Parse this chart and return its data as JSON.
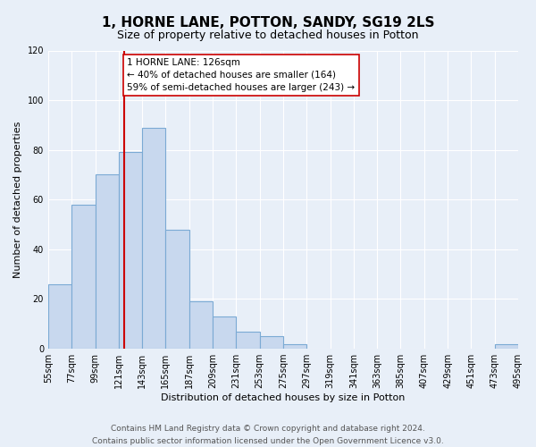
{
  "title": "1, HORNE LANE, POTTON, SANDY, SG19 2LS",
  "subtitle": "Size of property relative to detached houses in Potton",
  "xlabel": "Distribution of detached houses by size in Potton",
  "ylabel": "Number of detached properties",
  "bin_edges": [
    55,
    77,
    99,
    121,
    143,
    165,
    187,
    209,
    231,
    253,
    275,
    297,
    319,
    341,
    363,
    385,
    407,
    429,
    451,
    473,
    495
  ],
  "bin_counts": [
    26,
    58,
    70,
    79,
    89,
    48,
    19,
    13,
    7,
    5,
    2,
    0,
    0,
    0,
    0,
    0,
    0,
    0,
    0,
    2
  ],
  "bar_facecolor": "#c8d8ee",
  "bar_edgecolor": "#7baad4",
  "property_size": 126,
  "vline_color": "#cc0000",
  "annotation_text": "1 HORNE LANE: 126sqm\n← 40% of detached houses are smaller (164)\n59% of semi-detached houses are larger (243) →",
  "annotation_box_edgecolor": "#cc0000",
  "annotation_fontsize": 7.5,
  "ylim": [
    0,
    120
  ],
  "yticks": [
    0,
    20,
    40,
    60,
    80,
    100,
    120
  ],
  "background_color": "#e8eff8",
  "plot_background": "#e8eff8",
  "grid_color": "#ffffff",
  "footer_line1": "Contains HM Land Registry data © Crown copyright and database right 2024.",
  "footer_line2": "Contains public sector information licensed under the Open Government Licence v3.0.",
  "title_fontsize": 11,
  "subtitle_fontsize": 9,
  "axis_label_fontsize": 8,
  "tick_fontsize": 7,
  "footer_fontsize": 6.5
}
